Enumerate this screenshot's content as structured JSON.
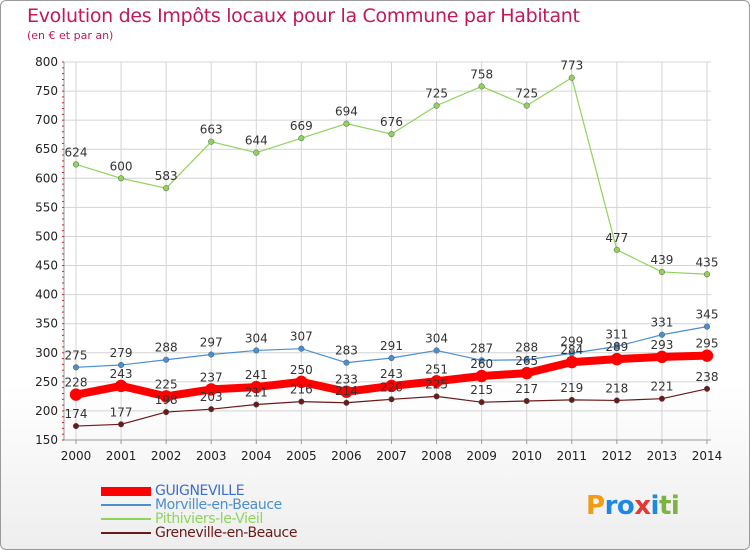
{
  "header": {
    "title": "Evolution des Impôts locaux pour la Commune par Habitant",
    "subtitle": "(en € et par an)"
  },
  "colors": {
    "title": "#c2185b",
    "grid": "#d4d4d4",
    "axis_text": "#222222",
    "label_text": "#333333",
    "minor_tick": "#e02020"
  },
  "chart_data": {
    "type": "line",
    "title": "Evolution des Impôts locaux pour la Commune par Habitant",
    "ylabel": "(en € et par an)",
    "xlabel": "",
    "ylim": [
      150,
      800
    ],
    "yticks": [
      150,
      200,
      250,
      300,
      350,
      400,
      450,
      500,
      550,
      600,
      650,
      700,
      750,
      800
    ],
    "x": [
      "2000",
      "2001",
      "2002",
      "2003",
      "2004",
      "2005",
      "2006",
      "2007",
      "2008",
      "2009",
      "2010",
      "2011",
      "2012",
      "2013",
      "2014"
    ],
    "grid": true,
    "legend_position": "bottom-left",
    "series": [
      {
        "name": "Pithiviers-le-Vieil",
        "color": "#8ed45a",
        "width": 1.2,
        "marker": 2.8,
        "values": [
          624,
          600,
          583,
          663,
          644,
          669,
          694,
          676,
          725,
          758,
          725,
          773,
          477,
          439,
          435
        ]
      },
      {
        "name": "Morville-en-Beauce",
        "color": "#4a8fd0",
        "width": 1.2,
        "marker": 2.8,
        "values": [
          275,
          279,
          288,
          297,
          304,
          307,
          283,
          291,
          304,
          287,
          288,
          299,
          311,
          331,
          345
        ]
      },
      {
        "name": "Greneville-en-Beauce",
        "color": "#6b1a1a",
        "width": 1.2,
        "marker": 2.8,
        "values": [
          174,
          177,
          198,
          203,
          211,
          216,
          214,
          220,
          225,
          215,
          217,
          219,
          218,
          221,
          238
        ]
      },
      {
        "name": "GUIGNEVILLE",
        "color": "#ff0000",
        "width": 8,
        "marker": 6,
        "values": [
          228,
          243,
          225,
          237,
          241,
          250,
          233,
          243,
          251,
          260,
          265,
          284,
          289,
          293,
          295
        ]
      }
    ],
    "legend_order": [
      "GUIGNEVILLE",
      "Morville-en-Beauce",
      "Pithiviers-le-Vieil",
      "Greneville-en-Beauce"
    ]
  },
  "logo": {
    "letters": [
      "P",
      "r",
      "o",
      "x",
      "i",
      "t",
      "i"
    ],
    "colors": [
      "#f39c12",
      "#1e88e5",
      "#1e88e5",
      "#e53935",
      "#1e88e5",
      "#7cb342",
      "#7cb342"
    ]
  }
}
